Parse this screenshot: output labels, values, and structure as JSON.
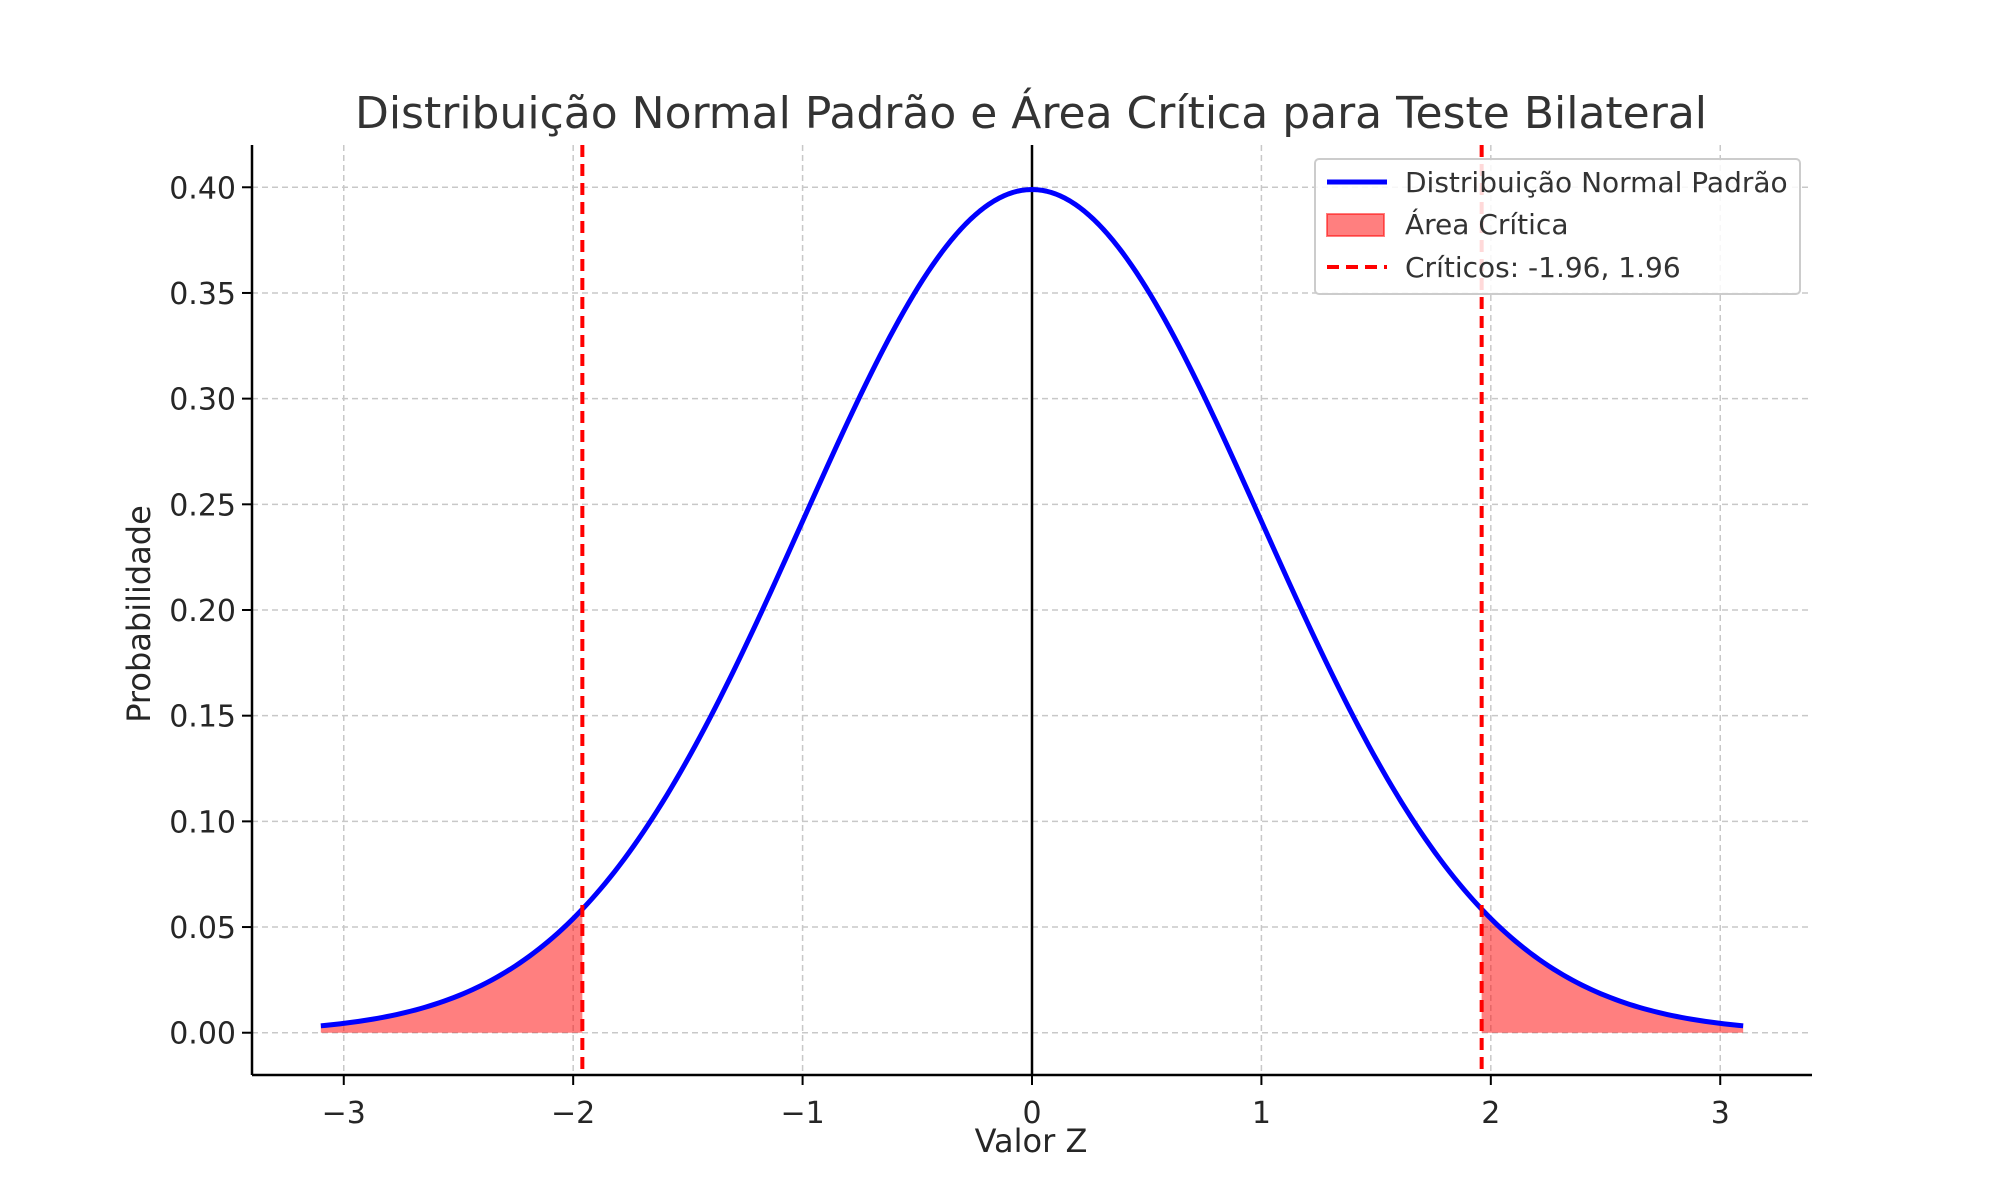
{
  "chart_data": {
    "type": "line",
    "title": "Distribuição Normal Padrão e Área Crítica para Teste Bilateral",
    "xlabel": "Valor Z",
    "ylabel": "Probabilidade",
    "xlim": [
      -3.4,
      3.4
    ],
    "ylim": [
      -0.02,
      0.42
    ],
    "xticks": [
      -3,
      -2,
      -1,
      0,
      1,
      2,
      3
    ],
    "xtick_labels": [
      "−3",
      "−2",
      "−1",
      "0",
      "1",
      "2",
      "3"
    ],
    "yticks": [
      0.0,
      0.05,
      0.1,
      0.15,
      0.2,
      0.25,
      0.3,
      0.35,
      0.4
    ],
    "ytick_labels": [
      "0.00",
      "0.05",
      "0.10",
      "0.15",
      "0.20",
      "0.25",
      "0.30",
      "0.35",
      "0.40"
    ],
    "grid": true,
    "grid_style": "dashed",
    "legend_position": "top-right",
    "series": [
      {
        "name": "Distribuição Normal Padrão",
        "kind": "line",
        "color": "#0000ff",
        "function": "standard_normal_pdf",
        "x_range": [
          -3.1,
          3.1
        ],
        "x": [
          -3.1,
          -3.0,
          -2.8,
          -2.6,
          -2.4,
          -2.2,
          -2.0,
          -1.96,
          -1.8,
          -1.6,
          -1.4,
          -1.2,
          -1.0,
          -0.8,
          -0.6,
          -0.4,
          -0.2,
          0.0,
          0.2,
          0.4,
          0.6,
          0.8,
          1.0,
          1.2,
          1.4,
          1.6,
          1.8,
          1.96,
          2.0,
          2.2,
          2.4,
          2.6,
          2.8,
          3.0,
          3.1
        ],
        "y": [
          0.0033,
          0.0044,
          0.0079,
          0.0136,
          0.0224,
          0.0355,
          0.054,
          0.0584,
          0.079,
          0.1109,
          0.1497,
          0.1942,
          0.242,
          0.2897,
          0.3332,
          0.3683,
          0.391,
          0.3989,
          0.391,
          0.3683,
          0.3332,
          0.2897,
          0.242,
          0.1942,
          0.1497,
          0.1109,
          0.079,
          0.0584,
          0.054,
          0.0355,
          0.0224,
          0.0136,
          0.0079,
          0.0044,
          0.0033
        ]
      },
      {
        "name": "Área Crítica",
        "kind": "area",
        "color": "#ff0000",
        "alpha": 0.5,
        "regions": [
          [
            -3.1,
            -1.96
          ],
          [
            1.96,
            3.1
          ]
        ]
      },
      {
        "name": "Críticos: -1.96, 1.96",
        "kind": "vline-dashed",
        "color": "#ff0000",
        "x": [
          -1.96,
          1.96
        ]
      }
    ],
    "reference_lines": [
      {
        "kind": "vline",
        "x": 0,
        "color": "#000000"
      }
    ]
  }
}
